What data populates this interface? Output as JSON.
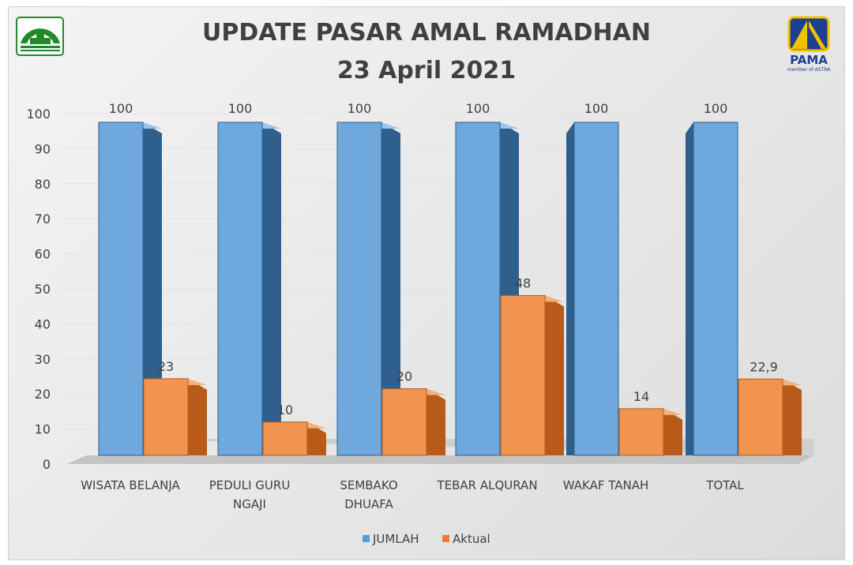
{
  "logos": {
    "left": "Pasar Amal Ramadhan mosque logo",
    "right": {
      "name": "PAMA",
      "tagline": "member of ASTRA"
    }
  },
  "chart_data": {
    "type": "bar",
    "title": "UPDATE PASAR AMAL RAMADHAN",
    "subtitle": "23 April 2021",
    "categories": [
      "WISATA BELANJA",
      "PEDULI GURU NGAJI",
      "SEMBAKO DHUAFA",
      "TEBAR ALQURAN",
      "WAKAF TANAH",
      "TOTAL"
    ],
    "series": [
      {
        "name": "JUMLAH",
        "color": "#5b9bd5",
        "values": [
          100,
          100,
          100,
          100,
          100,
          100
        ],
        "labels": [
          "100",
          "100",
          "100",
          "100",
          "100",
          "100"
        ]
      },
      {
        "name": "Aktual",
        "color": "#ed7d31",
        "values": [
          23,
          10,
          20,
          48,
          14,
          22.9
        ],
        "labels": [
          "23",
          "10",
          "20",
          "48",
          "14",
          "22,9"
        ]
      }
    ],
    "yticks": [
      "0",
      "10",
      "20",
      "30",
      "40",
      "50",
      "60",
      "70",
      "80",
      "90",
      "100"
    ],
    "ylim": [
      0,
      100
    ],
    "grid": true,
    "legend": "bottom",
    "style": "3d-clustered-column"
  }
}
